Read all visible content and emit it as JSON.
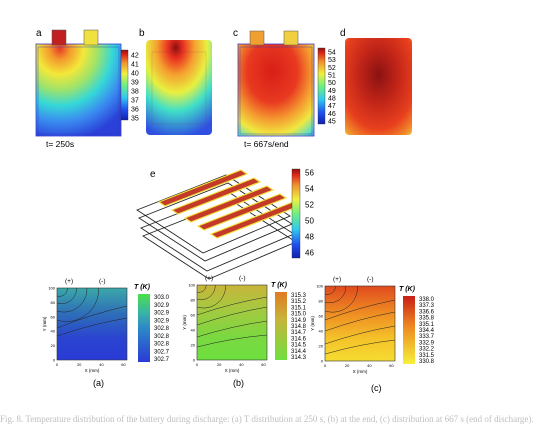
{
  "top_row": {
    "panels": [
      "a",
      "b",
      "c",
      "d"
    ],
    "time_left": "t= 250s",
    "time_right": "t= 667s/end",
    "colorbar_left": [
      "42",
      "41",
      "40",
      "39",
      "38",
      "37",
      "36",
      "35"
    ],
    "colorbar_right": [
      "54",
      "53",
      "52",
      "51",
      "50",
      "49",
      "48",
      "47",
      "46",
      "45"
    ],
    "terminal_colors": {
      "hot": "#c02020",
      "cold": "#f0e040"
    }
  },
  "middle": {
    "panel": "e",
    "colorbar": [
      "56",
      "54",
      "52",
      "50",
      "48",
      "46"
    ],
    "stripe_color": "#c43a28"
  },
  "bottom_row": {
    "plot_panels": [
      "(a)",
      "(b)",
      "(c)"
    ],
    "terminal_pos": "(+)",
    "terminal_neg": "(-)",
    "ylabel": "Y (mm)",
    "xlabel": "X (mm)",
    "x_ticks": [
      "0",
      "20",
      "40",
      "60"
    ],
    "y_ticks": [
      "0",
      "20",
      "40",
      "60",
      "80",
      "100"
    ],
    "legend_title": "T (K)",
    "legend_a": [
      "303.0",
      "302.9",
      "302.9",
      "302.9",
      "302.8",
      "302.8",
      "302.8",
      "302.7",
      "302.7"
    ],
    "legend_b": [
      "315.3",
      "315.2",
      "315.1",
      "315.0",
      "314.9",
      "314.8",
      "314.7",
      "314.6",
      "314.5",
      "314.4",
      "314.3"
    ],
    "legend_c": [
      "338.0",
      "337.3",
      "336.6",
      "335.8",
      "335.1",
      "334.4",
      "333.7",
      "332.9",
      "332.2",
      "331.5",
      "330.8"
    ]
  },
  "caption": "Fig. 8. Temperature distribution of the battery during discharge: (a) T distribution at 250 s, (b) at the end, (c) distribution at 667 s (end of discharge)."
}
